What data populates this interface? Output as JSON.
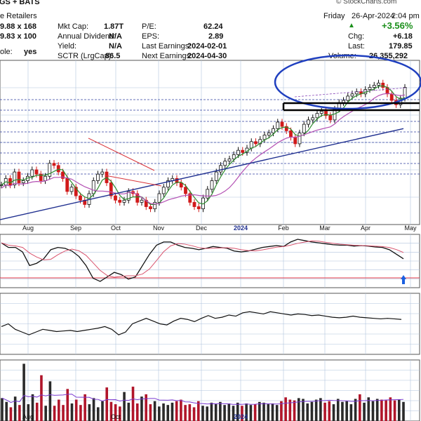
{
  "header": {
    "ticker_fragment": "GS + BATS",
    "subtitle_fragment": "e Retailers",
    "row1_fragment": "9.88 x 168",
    "row2_fragment": "9.83 x 100",
    "row3_fragment": "ole:",
    "row3_value": "yes",
    "watermark": "© StockCharts.com",
    "stats": [
      {
        "label": "Mkt Cap:",
        "value": "1.87T"
      },
      {
        "label": "Annual Dividend:",
        "value": "N/A"
      },
      {
        "label": "Yield:",
        "value": "N/A"
      },
      {
        "label": "SCTR (LrgCap):",
        "value": "86.5"
      }
    ],
    "fundamentals": [
      {
        "label": "P/E:",
        "value": "62.24"
      },
      {
        "label": "EPS:",
        "value": "2.89"
      },
      {
        "label": "Last Earnings:",
        "value": "2024-02-01"
      },
      {
        "label": "Next Earnings:",
        "value": "2024-04-30"
      }
    ],
    "date_line": {
      "day": "Friday",
      "date": "26-Apr-2024",
      "time": "2:04 pm"
    },
    "change_pct": "+3.56%",
    "quote": [
      {
        "label": "Chg:",
        "value": "+6.18"
      },
      {
        "label": "Last:",
        "value": "179.85"
      },
      {
        "label": "Volume:",
        "value": "26,355,292"
      }
    ]
  },
  "colors": {
    "up_candle": "#111111",
    "down_candle": "#d11a1a",
    "ma_short": "#2e8b2e",
    "ma_mid": "#b34fb3",
    "ma_long": "#1f2f8f",
    "annotation_blue": "#1f3fbf",
    "annotation_black": "#000000",
    "trend_red": "#d9343a",
    "grid": "#b0c4de",
    "volume_bar": "#b0152a",
    "arrow": "#1a5fe0"
  },
  "chart_data": [
    {
      "type": "candlestick",
      "panel": "price",
      "x_tick_labels": [
        "Aug",
        "Sep",
        "Oct",
        "Nov",
        "Dec",
        "2024",
        "Feb",
        "Mar",
        "Apr",
        "May"
      ],
      "close": [
        135,
        138,
        135,
        141,
        136,
        137,
        139,
        142,
        140,
        137,
        139,
        145,
        144,
        141,
        138,
        132,
        134,
        130,
        128,
        126,
        131,
        137,
        140,
        141,
        136,
        130,
        128,
        127,
        128,
        132,
        131,
        127,
        128,
        125,
        124,
        127,
        131,
        134,
        137,
        138,
        136,
        134,
        131,
        127,
        125,
        124,
        129,
        133,
        137,
        141,
        144,
        146,
        147,
        149,
        151,
        150,
        152,
        155,
        154,
        156,
        158,
        159,
        161,
        164,
        162,
        160,
        157,
        154,
        159,
        163,
        165,
        166,
        168,
        169,
        167,
        165,
        170,
        173,
        174,
        176,
        177,
        178,
        177,
        179,
        180,
        181,
        182,
        180,
        177,
        174,
        172,
        175,
        180
      ]
    },
    {
      "type": "line",
      "panel": "oscillator",
      "values": [
        40,
        30,
        30,
        20,
        -10,
        -5,
        5,
        25,
        30,
        28,
        22,
        10,
        -10,
        -38,
        -45,
        -35,
        -25,
        -30,
        -40,
        -35,
        -10,
        15,
        35,
        42,
        42,
        35,
        30,
        28,
        25,
        28,
        32,
        30,
        28,
        22,
        20,
        22,
        26,
        30,
        32,
        34,
        32,
        42,
        48,
        45,
        42,
        40,
        38,
        36,
        35,
        35,
        33,
        34,
        33,
        31,
        30,
        25,
        15,
        5
      ]
    },
    {
      "type": "line",
      "panel": "indicator",
      "values": [
        -5,
        0,
        -10,
        -15,
        -20,
        -15,
        -10,
        -12,
        -14,
        -13,
        -12,
        -14,
        -12,
        -10,
        -8,
        -5,
        -10,
        -20,
        -15,
        0,
        5,
        10,
        5,
        0,
        -2,
        5,
        10,
        8,
        4,
        10,
        15,
        10,
        12,
        16,
        14,
        20,
        22,
        20,
        18,
        22,
        20,
        18,
        16,
        18,
        17,
        15,
        16,
        14,
        12,
        11,
        12,
        14,
        12,
        11,
        10,
        9,
        10,
        9,
        8
      ]
    },
    {
      "type": "bar",
      "panel": "volume",
      "values": [
        3,
        2.5,
        1.8,
        3.2,
        2.1,
        7.5,
        2.2,
        3.5,
        2.4,
        6,
        2,
        5.2,
        2,
        2.8,
        2.1,
        4.2,
        2.3,
        2.8,
        2.1,
        3.5,
        2.2,
        3,
        1.8,
        2.6,
        4.4,
        2.5,
        2.2,
        1.9,
        3.8,
        2.4,
        4.5,
        2.3,
        3.2,
        3.5,
        2.2,
        2.6,
        1.9,
        2.3,
        2.1,
        2.4,
        2.6,
        2.8,
        2.1,
        2.2,
        1.8,
        2.6,
        2,
        1.9,
        2.4,
        2.2,
        2.5,
        2.1,
        2.3,
        2,
        2.4,
        2,
        2.3,
        2.1,
        2.2,
        2.5,
        2.4,
        2.2,
        2.3,
        2.1,
        2.6,
        3.1,
        2.8,
        2.7,
        3,
        2.9,
        2.3,
        2.5,
        2.8,
        3,
        2.4,
        2.6,
        2.2,
        2.9,
        2.5,
        2.6,
        2.2,
        2.9,
        3.5,
        2.4,
        3.1,
        2.6,
        2.9,
        2.8,
        2.7,
        3.1,
        2.7,
        2.8,
        2.5
      ]
    }
  ]
}
